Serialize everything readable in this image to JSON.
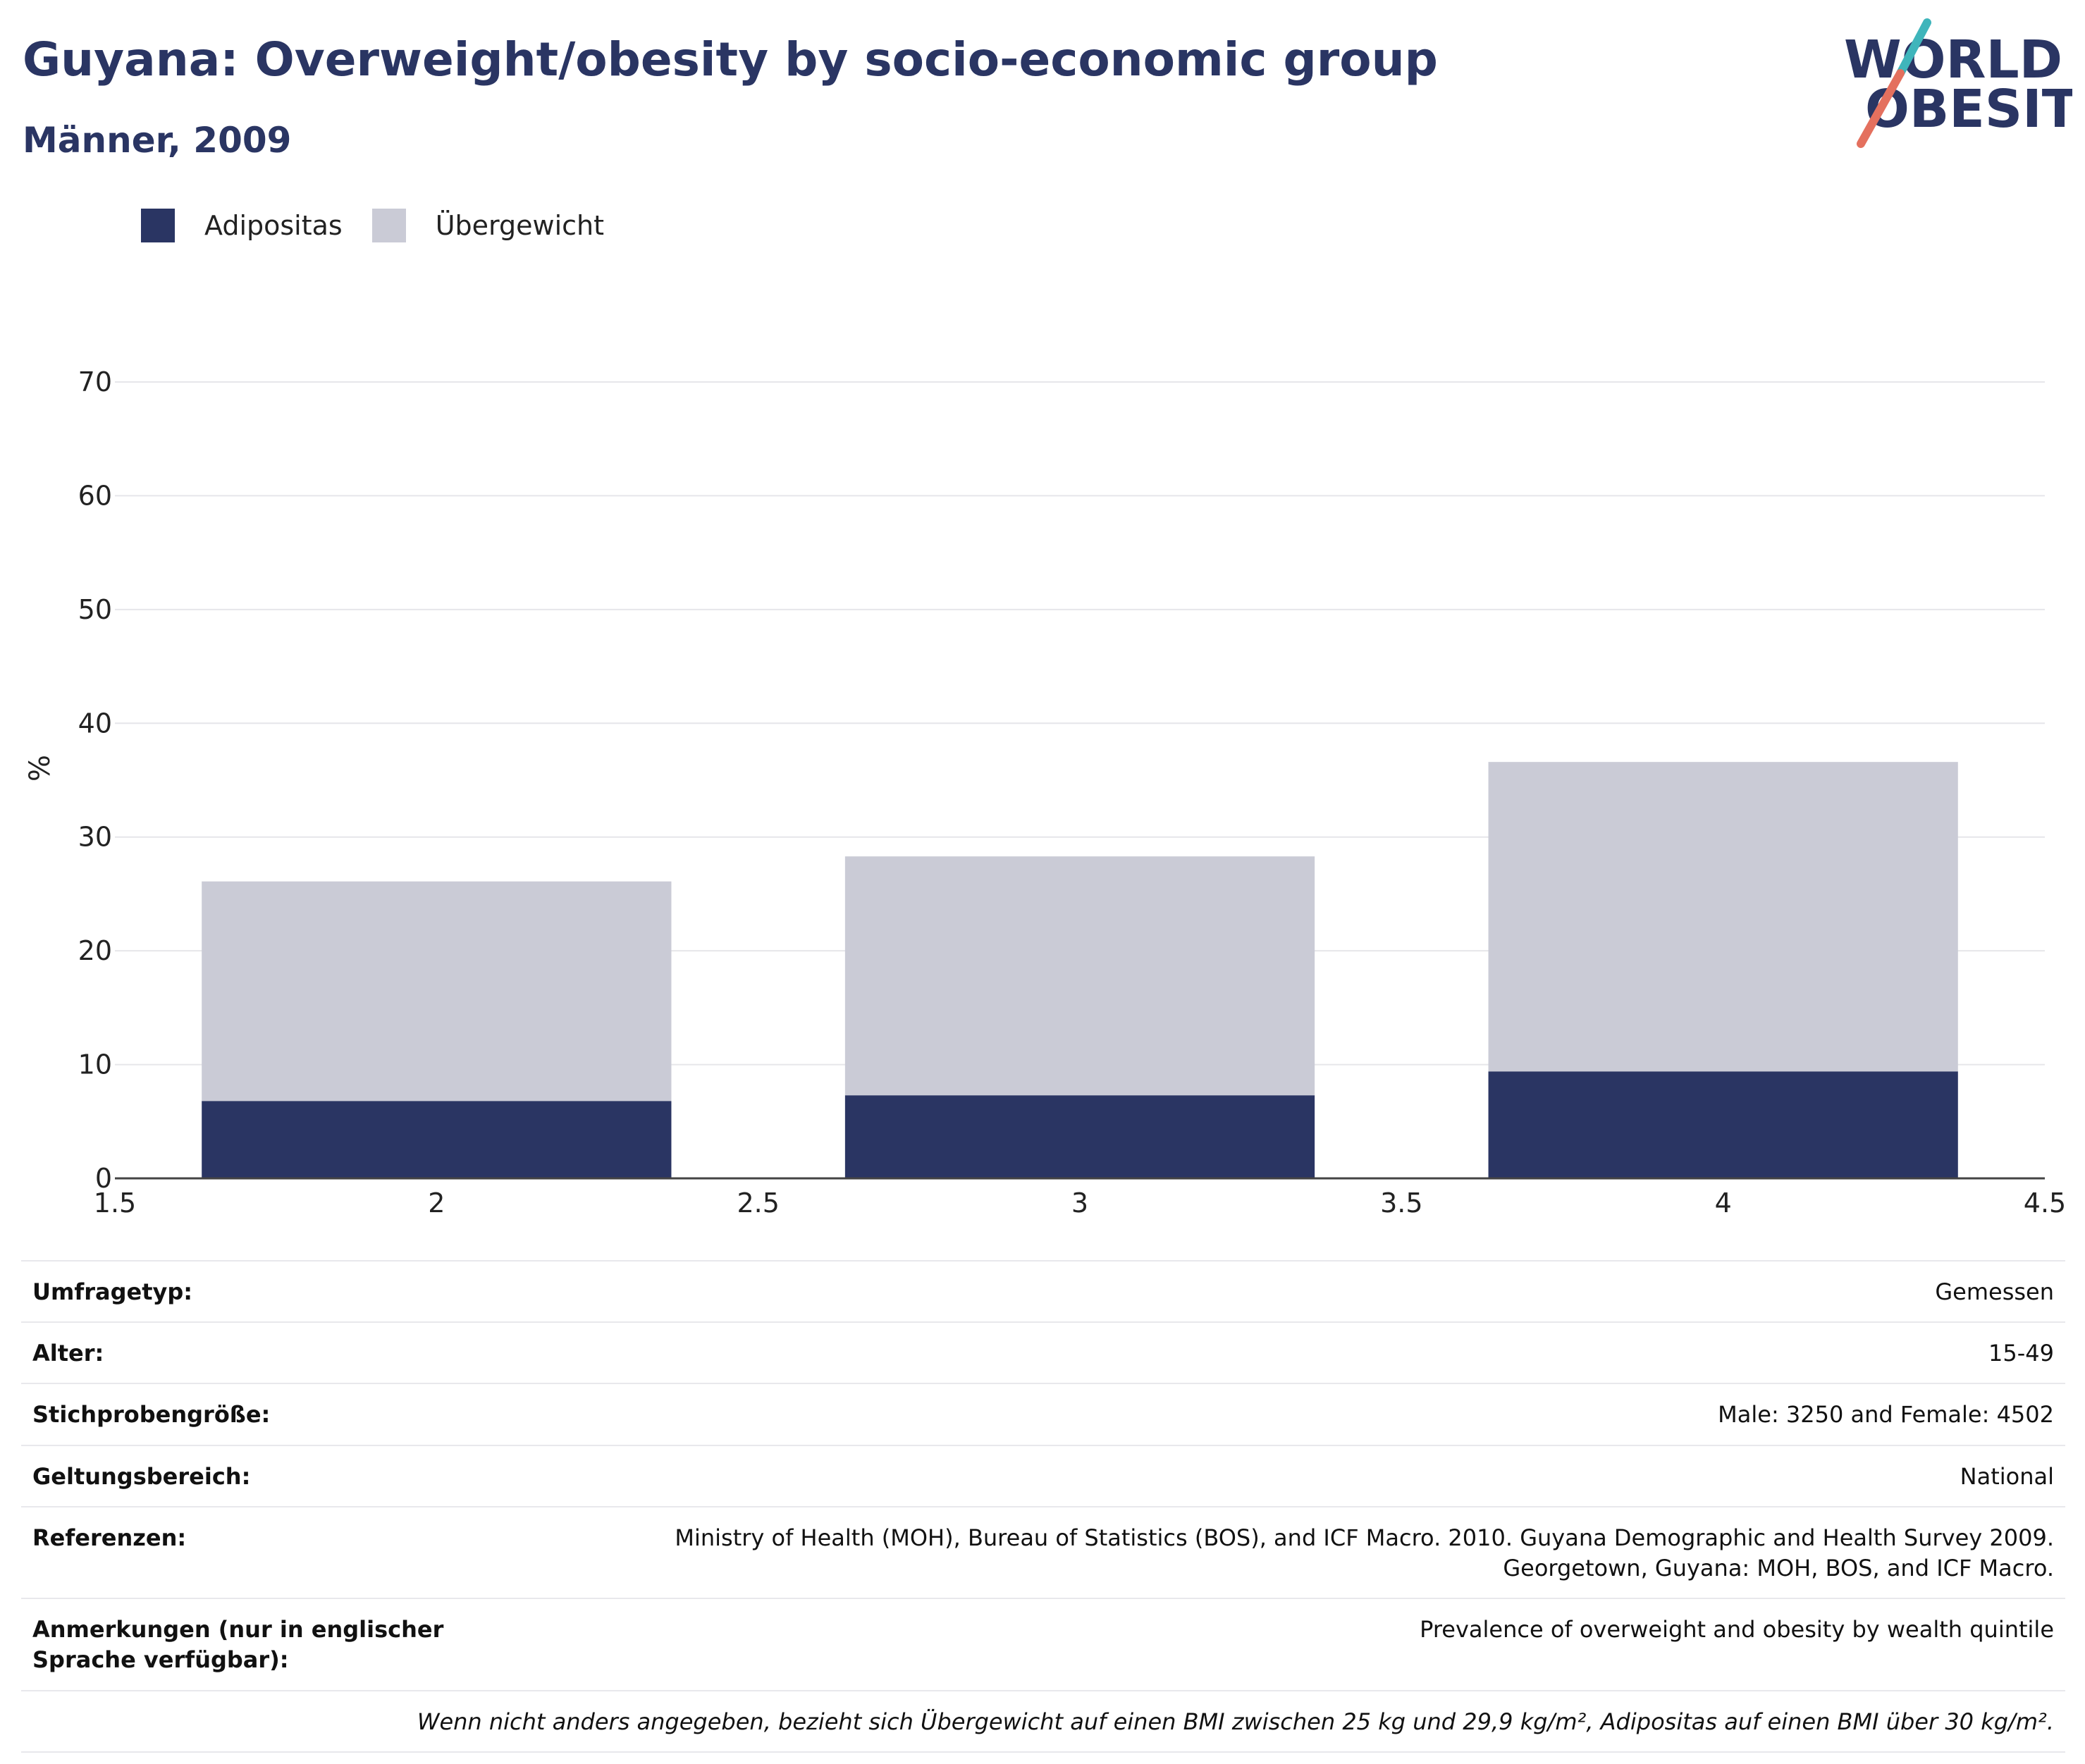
{
  "header": {
    "title": "Guyana: Overweight/obesity by socio-economic group",
    "subtitle": "Männer, 2009"
  },
  "logo": {
    "line1": "WORLD",
    "line2": "OBESITY",
    "icon": "world-obesity-logo"
  },
  "legend": [
    {
      "label": "Adipositas",
      "color": "#2a3563"
    },
    {
      "label": "Übergewicht",
      "color": "#cacbd6"
    }
  ],
  "chart_data": {
    "type": "bar",
    "stacked": true,
    "x": [
      2,
      3,
      4
    ],
    "series": [
      {
        "name": "Adipositas",
        "color": "#2a3563",
        "values": [
          6.8,
          7.3,
          9.4
        ]
      },
      {
        "name": "Übergewicht",
        "color": "#cacbd6",
        "values": [
          19.3,
          21.0,
          27.2
        ]
      }
    ],
    "ylabel": "%",
    "xlabel": "",
    "xlim": [
      1.5,
      4.5
    ],
    "ylim": [
      0,
      70
    ],
    "xticks": [
      "1.5",
      "2",
      "2.5",
      "3",
      "3.5",
      "4",
      "4.5"
    ],
    "yticks": [
      "0",
      "10",
      "20",
      "30",
      "40",
      "50",
      "60",
      "70"
    ],
    "grid": true,
    "legend_position": "top-left"
  },
  "info": {
    "rows": [
      {
        "label": "Umfragetyp:",
        "value": "Gemessen"
      },
      {
        "label": "Alter:",
        "value": "15-49"
      },
      {
        "label": "Stichprobengröße:",
        "value": "Male: 3250 and Female: 4502"
      },
      {
        "label": "Geltungsbereich:",
        "value": "National"
      },
      {
        "label": "Referenzen:",
        "value": "Ministry of Health (MOH), Bureau of Statistics (BOS), and ICF Macro. 2010. Guyana Demographic and Health Survey 2009. Georgetown, Guyana: MOH, BOS, and ICF Macro."
      },
      {
        "label": "Anmerkungen (nur in englischer Sprache verfügbar):",
        "value": "Prevalence of overweight and obesity by wealth quintile"
      }
    ],
    "footnote": "Wenn nicht anders angegeben, bezieht sich Übergewicht auf einen BMI zwischen 25 kg und 29,9 kg/m², Adipositas auf einen BMI über 30 kg/m²."
  }
}
